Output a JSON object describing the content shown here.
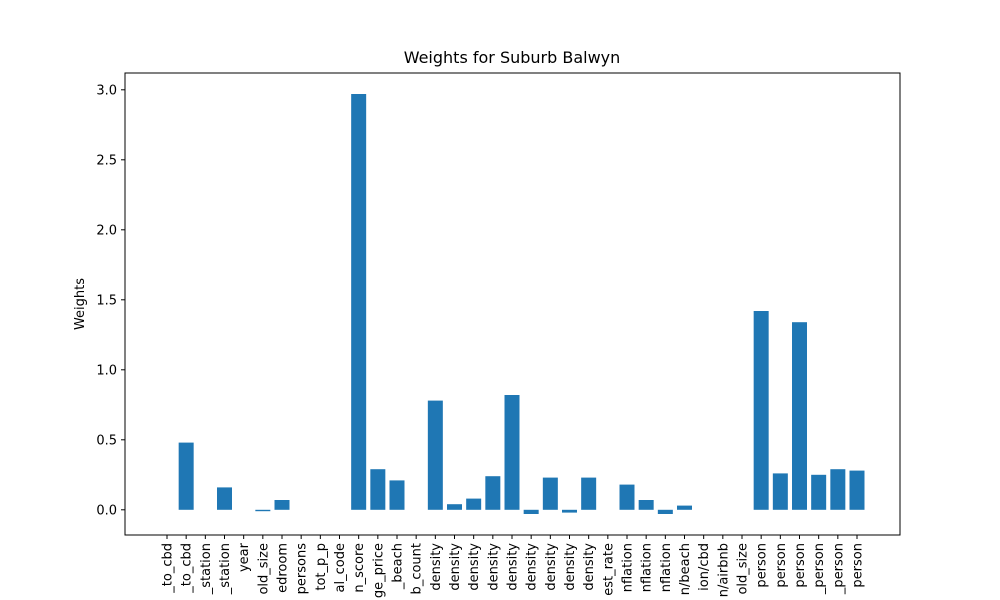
{
  "chart_data": {
    "type": "bar",
    "title": "Weights for Suburb Balwyn",
    "xlabel": "",
    "ylabel": "Weights",
    "ylim": [
      -0.18,
      3.12
    ],
    "yticks": [
      0.0,
      0.5,
      1.0,
      1.5,
      2.0,
      2.5,
      3.0
    ],
    "ytick_labels": [
      "0.0",
      "0.5",
      "1.0",
      "1.5",
      "2.0",
      "2.5",
      "3.0"
    ],
    "grid": false,
    "color": "#1f77b4",
    "categories": [
      "_to_cbd",
      "_to_cbd",
      "_station",
      "_station",
      "year",
      "old_size",
      "edroom",
      "persons",
      "tot_p_p",
      "al_code",
      "n_score",
      "ge_price",
      "_beach",
      "b_count",
      "density",
      "density",
      "density",
      "density",
      "density",
      "density",
      "density",
      "density",
      "density",
      "est_rate",
      "nflation",
      "nflation",
      "nflation",
      "n/beach",
      "ion/cbd",
      "n/airbnb",
      "old_size",
      "person",
      "person",
      "person",
      "_person",
      "_person",
      "person"
    ],
    "values": [
      0.0,
      0.48,
      0.0,
      0.16,
      0.0,
      -0.01,
      0.07,
      0.0,
      0.0,
      0.0,
      2.97,
      0.29,
      0.21,
      0.0,
      0.78,
      0.04,
      0.08,
      0.24,
      0.82,
      -0.03,
      0.23,
      -0.02,
      0.23,
      0.0,
      0.18,
      0.07,
      -0.03,
      0.03,
      0.0,
      0.0,
      0.0,
      1.42,
      0.26,
      1.34,
      0.25,
      0.29,
      0.28
    ]
  }
}
